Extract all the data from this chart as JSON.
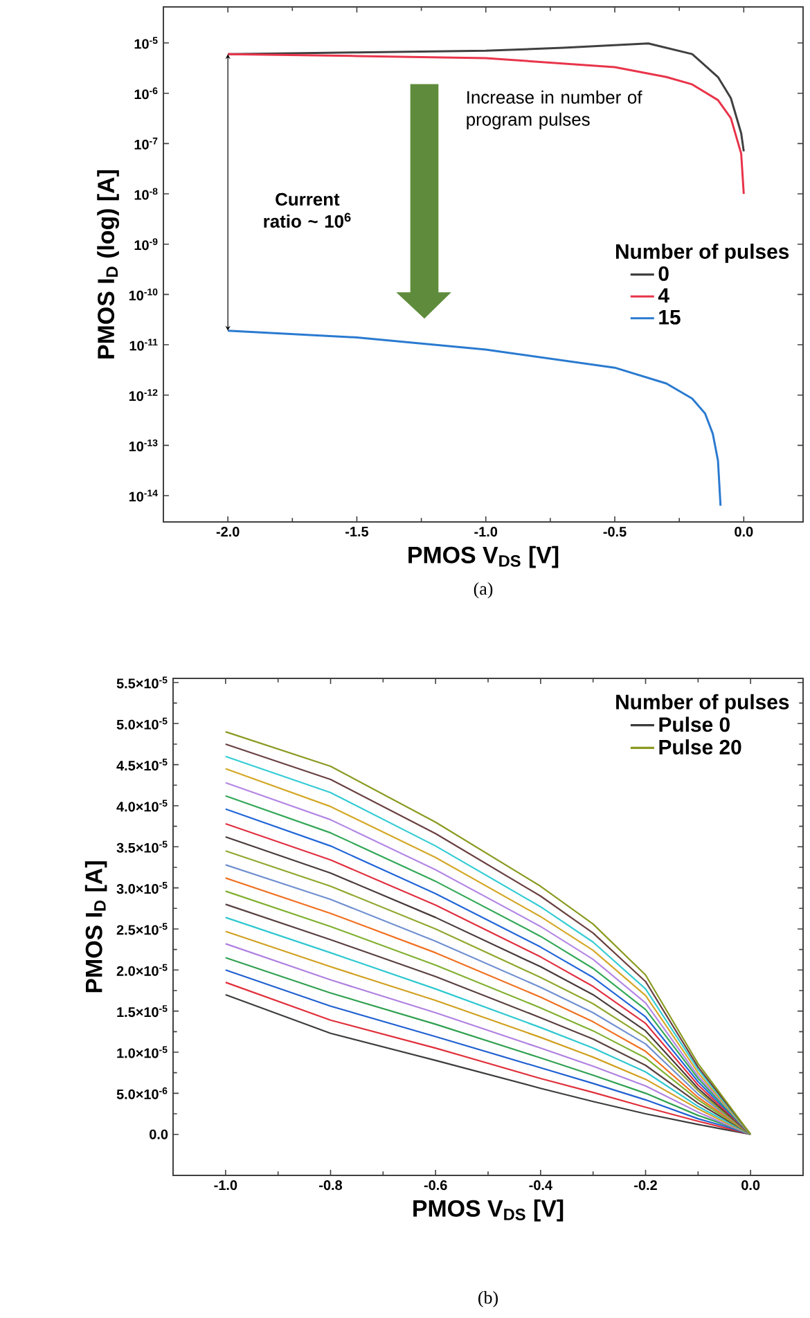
{
  "chart_data": [
    {
      "type": "line",
      "xlabel": "PMOS V$_{DS}$ [V]",
      "ylabel": "PMOS I$_{D}$ (log) [A]",
      "legend_title": "Number of pulses",
      "legend": "right",
      "log": "y",
      "line_style": "solid",
      "xlim": [
        -2.25,
        0.23
      ],
      "ylim": [
        3e-15,
        5.2e-05
      ],
      "xticks": [
        {
          "value": -2,
          "label": "-2.0"
        },
        {
          "value": -1.5,
          "label": "-1.5"
        },
        {
          "value": -1,
          "label": "-1.0"
        },
        {
          "value": -0.5,
          "label": "-0.5"
        },
        {
          "value": 0,
          "label": "0.0"
        }
      ],
      "yticks": [
        {
          "value": 1e-05,
          "label": "10$^{-5}$"
        },
        {
          "value": 1e-06,
          "label": "10$^{-6}$"
        },
        {
          "value": 1e-07,
          "label": "10$^{-7}$"
        },
        {
          "value": 1e-08,
          "label": "10$^{-8}$"
        },
        {
          "value": 1e-09,
          "label": "10$^{-9}$"
        },
        {
          "value": 1e-10,
          "label": "10$^{-10}$"
        },
        {
          "value": 1e-11,
          "label": "10$^{-11}$"
        },
        {
          "value": 1e-12,
          "label": "10$^{-12}$"
        },
        {
          "value": 1e-13,
          "label": "10$^{-13}$"
        },
        {
          "value": 1e-14,
          "label": "10$^{-14}$"
        }
      ],
      "annotations": [
        "Increase in number of program pulses",
        "Current ratio ~ 10$^{6}$",
        "(a)"
      ],
      "series": [
        {
          "name": "0",
          "color": "#404040",
          "x": [
            -2,
            -1.5,
            -1,
            -0.7,
            -0.37,
            -0.2,
            -0.1,
            -0.05,
            -0.01,
            0
          ],
          "values": [
            6e-06,
            6.5e-06,
            7e-06,
            8e-06,
            9.8e-06,
            6e-06,
            2.1e-06,
            8e-07,
            1.6e-07,
            7e-08
          ]
        },
        {
          "name": "4",
          "color": "#e8344a",
          "x": [
            -2,
            -1.5,
            -1,
            -0.5,
            -0.3,
            -0.2,
            -0.1,
            -0.05,
            -0.01,
            0
          ],
          "values": [
            6e-06,
            5.5e-06,
            5e-06,
            3.3e-06,
            2.1e-06,
            1.5e-06,
            7.3e-07,
            3.2e-07,
            6.3e-08,
            1e-08
          ]
        },
        {
          "name": "15",
          "color": "#2a7ad0",
          "x": [
            -2,
            -1.5,
            -1,
            -0.5,
            -0.3,
            -0.2,
            -0.15,
            -0.12,
            -0.1,
            -0.09
          ],
          "values": [
            1.9e-11,
            1.4e-11,
            8e-12,
            3.5e-12,
            1.7e-12,
            8.5e-13,
            4.3e-13,
            1.7e-13,
            5e-14,
            6.3e-15
          ]
        }
      ]
    },
    {
      "type": "line",
      "xlabel": "PMOS V$_{DS}$ [V]",
      "ylabel": "PMOS I$_{D}$ [A]",
      "legend_title": "Number of pulses",
      "legend": "top right",
      "line_style": "solid",
      "xlim": [
        -1.1,
        0.1
      ],
      "ylim": [
        -5e-06,
        5.55e-05
      ],
      "xticks": [
        {
          "value": -1,
          "label": "-1.0"
        },
        {
          "value": -0.8,
          "label": "-0.8"
        },
        {
          "value": -0.6,
          "label": "-0.6"
        },
        {
          "value": -0.4,
          "label": "-0.4"
        },
        {
          "value": -0.2,
          "label": "-0.2"
        },
        {
          "value": 0,
          "label": "0.0"
        }
      ],
      "yticks": [
        {
          "value": 0,
          "label": "0.0"
        },
        {
          "value": 5e-06,
          "label": "5.0×10$^{-6}$"
        },
        {
          "value": 1e-05,
          "label": "1.0×10$^{-5}$"
        },
        {
          "value": 1.5e-05,
          "label": "1.5×10$^{-5}$"
        },
        {
          "value": 2e-05,
          "label": "2.0×10$^{-5}$"
        },
        {
          "value": 2.5e-05,
          "label": "2.5×10$^{-5}$"
        },
        {
          "value": 3e-05,
          "label": "3.0×10$^{-5}$"
        },
        {
          "value": 3.5e-05,
          "label": "3.5×10$^{-5}$"
        },
        {
          "value": 4e-05,
          "label": "4.0×10$^{-5}$"
        },
        {
          "value": 4.5e-05,
          "label": "4.5×10$^{-5}$"
        },
        {
          "value": 5e-05,
          "label": "5.0×10$^{-5}$"
        },
        {
          "value": 5.5e-05,
          "label": "5.5×10$^{-5}$"
        }
      ],
      "annotations": [
        "(b)"
      ],
      "x": [
        -1,
        -0.8,
        -0.6,
        -0.4,
        -0.3,
        -0.2,
        -0.1,
        -0.05,
        0
      ],
      "series": [
        {
          "name": "Pulse 0",
          "color": "#3c3c3c",
          "values": [
            1.7e-05,
            1.23e-05,
            9e-06,
            5.6e-06,
            4e-06,
            2.5e-06,
            1.2e-06,
            6e-07,
            0
          ]
        },
        {
          "color": "#e0303a",
          "values": [
            1.85e-05,
            1.39e-05,
            1.05e-05,
            6.8e-06,
            5.1e-06,
            3.3e-06,
            1.6e-06,
            8e-07,
            0
          ]
        },
        {
          "color": "#2060d0",
          "values": [
            2e-05,
            1.56e-05,
            1.19e-05,
            8.1e-06,
            6.2e-06,
            4.2e-06,
            1.9e-06,
            1e-06,
            0
          ]
        },
        {
          "color": "#30a050",
          "values": [
            2.15e-05,
            1.72e-05,
            1.34e-05,
            9.3e-06,
            7.2e-06,
            5e-06,
            2.3e-06,
            1.2e-06,
            0
          ]
        },
        {
          "color": "#b080e0",
          "values": [
            2.32e-05,
            1.88e-05,
            1.48e-05,
            1.05e-05,
            8.3e-06,
            5.9e-06,
            2.7e-06,
            1.3e-06,
            0
          ]
        },
        {
          "color": "#d0a020",
          "values": [
            2.47e-05,
            2.04e-05,
            1.63e-05,
            1.18e-05,
            9.4e-06,
            6.7e-06,
            3.1e-06,
            1.5e-06,
            0
          ]
        },
        {
          "color": "#30c8d0",
          "values": [
            2.64e-05,
            2.21e-05,
            1.77e-05,
            1.3e-05,
            1.05e-05,
            7.6e-06,
            3.4e-06,
            1.7e-06,
            0
          ]
        },
        {
          "color": "#5a4040",
          "values": [
            2.8e-05,
            2.37e-05,
            1.92e-05,
            1.42e-05,
            1.16e-05,
            8.4e-06,
            3.8e-06,
            1.9e-06,
            0
          ]
        },
        {
          "color": "#80b030",
          "values": [
            2.96e-05,
            2.53e-05,
            2.06e-05,
            1.54e-05,
            1.26e-05,
            9.3e-06,
            4.2e-06,
            2.1e-06,
            0
          ]
        },
        {
          "color": "#f07020",
          "values": [
            3.12e-05,
            2.69e-05,
            2.21e-05,
            1.67e-05,
            1.37e-05,
            1.01e-05,
            4.5e-06,
            2.3e-06,
            0
          ]
        },
        {
          "color": "#7090d0",
          "values": [
            3.28e-05,
            2.86e-05,
            2.35e-05,
            1.79e-05,
            1.48e-05,
            1.1e-05,
            4.9e-06,
            2.5e-06,
            0
          ]
        },
        {
          "color": "#90a830",
          "values": [
            3.45e-05,
            3.02e-05,
            2.5e-05,
            1.91e-05,
            1.59e-05,
            1.18e-05,
            5.3e-06,
            2.6e-06,
            0
          ]
        },
        {
          "color": "#4a3a3a",
          "values": [
            3.62e-05,
            3.18e-05,
            2.64e-05,
            2.04e-05,
            1.7e-05,
            1.26e-05,
            5.6e-06,
            2.8e-06,
            0
          ]
        },
        {
          "color": "#e03040",
          "values": [
            3.78e-05,
            3.34e-05,
            2.79e-05,
            2.16e-05,
            1.8e-05,
            1.35e-05,
            6e-06,
            3e-06,
            0
          ]
        },
        {
          "color": "#2266d8",
          "values": [
            3.96e-05,
            3.51e-05,
            2.93e-05,
            2.28e-05,
            1.91e-05,
            1.43e-05,
            6.4e-06,
            3.2e-06,
            0
          ]
        },
        {
          "color": "#34a858",
          "values": [
            4.12e-05,
            3.67e-05,
            3.08e-05,
            2.41e-05,
            2.02e-05,
            1.52e-05,
            6.8e-06,
            3.4e-06,
            0
          ]
        },
        {
          "color": "#b488e4",
          "values": [
            4.28e-05,
            3.83e-05,
            3.22e-05,
            2.53e-05,
            2.13e-05,
            1.6e-05,
            7.1e-06,
            3.6e-06,
            0
          ]
        },
        {
          "color": "#d4a828",
          "values": [
            4.45e-05,
            3.99e-05,
            3.37e-05,
            2.65e-05,
            2.24e-05,
            1.69e-05,
            7.5e-06,
            3.7e-06,
            0
          ]
        },
        {
          "color": "#34ccd4",
          "values": [
            4.6e-05,
            4.16e-05,
            3.51e-05,
            2.77e-05,
            2.34e-05,
            1.77e-05,
            7.9e-06,
            3.9e-06,
            0
          ]
        },
        {
          "color": "#6a4040",
          "values": [
            4.75e-05,
            4.32e-05,
            3.66e-05,
            2.9e-05,
            2.45e-05,
            1.86e-05,
            8.2e-06,
            4.1e-06,
            0
          ]
        },
        {
          "name": "Pulse 20",
          "color": "#8a9a20",
          "values": [
            4.9e-05,
            4.48e-05,
            3.8e-05,
            3.02e-05,
            2.56e-05,
            1.94e-05,
            8.6e-06,
            4.3e-06,
            0
          ]
        }
      ]
    }
  ]
}
